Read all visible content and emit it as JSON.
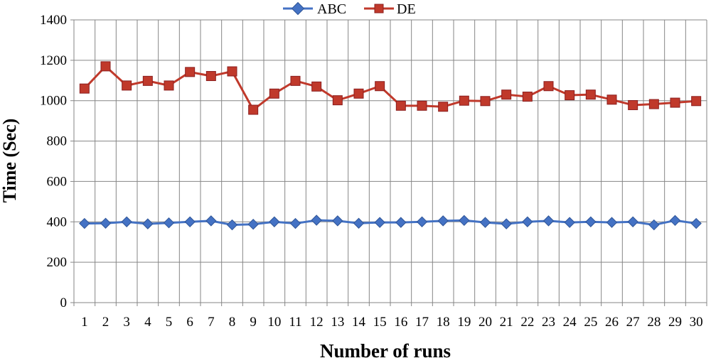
{
  "chart_data": {
    "type": "line",
    "xlabel": "Number of runs",
    "ylabel": "Time (Sec)",
    "ylim": [
      0,
      1400
    ],
    "yticks": [
      0,
      200,
      400,
      600,
      800,
      1000,
      1200,
      1400
    ],
    "x": [
      1,
      2,
      3,
      4,
      5,
      6,
      7,
      8,
      9,
      10,
      11,
      12,
      13,
      14,
      15,
      16,
      17,
      18,
      19,
      20,
      21,
      22,
      23,
      24,
      25,
      26,
      27,
      28,
      29,
      30
    ],
    "grid": true,
    "legend_position": "top-center",
    "series": [
      {
        "name": "ABC",
        "color": "#4472c4",
        "marker": "diamond",
        "values": [
          392,
          393,
          400,
          390,
          395,
          400,
          405,
          385,
          388,
          400,
          392,
          408,
          405,
          393,
          397,
          397,
          400,
          405,
          407,
          397,
          390,
          400,
          405,
          397,
          400,
          397,
          400,
          385,
          407,
          392
        ]
      },
      {
        "name": "DE",
        "color": "#c0392b",
        "marker": "square",
        "values": [
          1060,
          1170,
          1075,
          1098,
          1075,
          1142,
          1122,
          1145,
          955,
          1035,
          1098,
          1070,
          1002,
          1035,
          1072,
          975,
          975,
          970,
          1000,
          998,
          1030,
          1020,
          1072,
          1027,
          1030,
          1005,
          978,
          983,
          990,
          998
        ]
      }
    ]
  }
}
